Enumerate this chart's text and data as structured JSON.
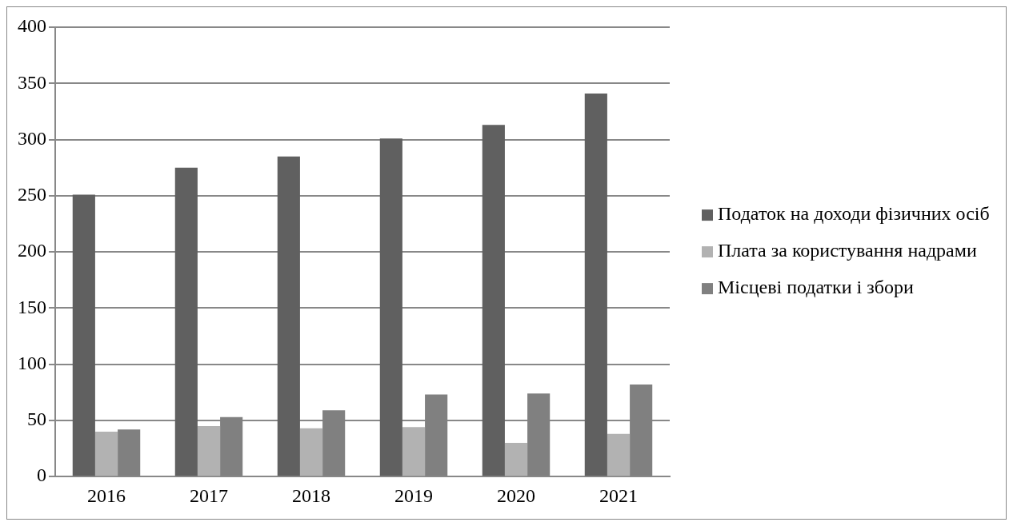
{
  "chart_data": {
    "type": "bar",
    "categories": [
      "2016",
      "2017",
      "2018",
      "2019",
      "2020",
      "2021"
    ],
    "series": [
      {
        "name": "Податок на доходи фізичних осіб",
        "color": "#606060",
        "values": [
          251,
          275,
          285,
          301,
          313,
          341
        ]
      },
      {
        "name": "Плата за користування надрами",
        "color": "#b2b2b2",
        "values": [
          40,
          45,
          43,
          44,
          30,
          38
        ]
      },
      {
        "name": "Місцеві податки і збори",
        "color": "#808080",
        "values": [
          42,
          53,
          59,
          73,
          74,
          82
        ]
      }
    ],
    "ylim": [
      0,
      400
    ],
    "yticks": [
      0,
      50,
      100,
      150,
      200,
      250,
      300,
      350,
      400
    ],
    "grid": "y",
    "legend": "right"
  }
}
